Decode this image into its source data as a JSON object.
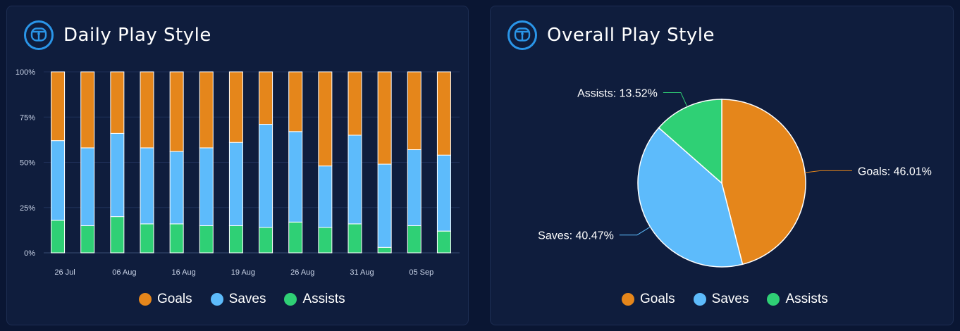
{
  "colors": {
    "goals": "#e5861b",
    "saves": "#5dbbfb",
    "assists": "#2fd075",
    "accent": "#2a95e8"
  },
  "panels": {
    "daily": {
      "title": "Daily Play Style",
      "icon": "steering-wheel-icon"
    },
    "overall": {
      "title": "Overall Play Style",
      "icon": "steering-wheel-icon"
    }
  },
  "legend": [
    "Goals",
    "Saves",
    "Assists"
  ],
  "chart_data": [
    {
      "type": "bar",
      "stacked": true,
      "y_tick_labels": [
        "0%",
        "25%",
        "50%",
        "75%",
        "100%"
      ],
      "ylim": [
        0,
        100
      ],
      "x_tick_labels": [
        "26 Jul",
        "06 Aug",
        "16 Aug",
        "19 Aug",
        "26 Aug",
        "31 Aug",
        "05 Sep"
      ],
      "x_tick_bar_index": [
        0,
        2,
        4,
        6,
        8,
        10,
        12
      ],
      "grid": true,
      "legend_position": "bottom",
      "series": [
        {
          "name": "Assists",
          "values": [
            18,
            15,
            20,
            16,
            16,
            15,
            15,
            14,
            17,
            14,
            16,
            3,
            15,
            12
          ]
        },
        {
          "name": "Saves",
          "values": [
            44,
            43,
            46,
            42,
            40,
            43,
            46,
            57,
            50,
            34,
            49,
            46,
            42,
            42
          ]
        },
        {
          "name": "Goals",
          "values": [
            38,
            42,
            34,
            42,
            44,
            42,
            39,
            29,
            33,
            52,
            35,
            51,
            43,
            46
          ]
        }
      ]
    },
    {
      "type": "pie",
      "legend_position": "bottom",
      "slices": [
        {
          "name": "Goals",
          "value": 46.01,
          "label": "Goals: 46.01%"
        },
        {
          "name": "Saves",
          "value": 40.47,
          "label": "Saves: 40.47%"
        },
        {
          "name": "Assists",
          "value": 13.52,
          "label": "Assists: 13.52%"
        }
      ]
    }
  ]
}
